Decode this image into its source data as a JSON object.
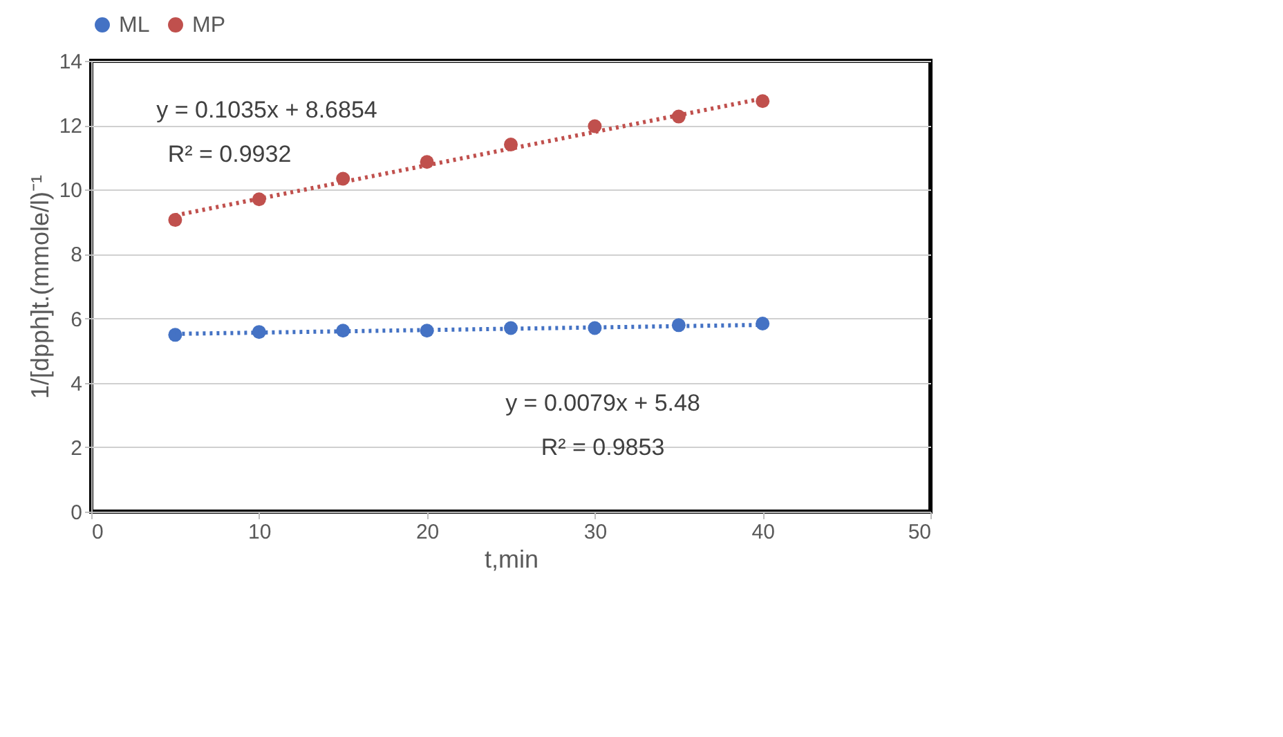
{
  "chart_data": {
    "type": "scatter",
    "xlabel": "t,min",
    "ylabel": "1/[dpph]t.(mmole/l)⁻¹",
    "xlim": [
      0,
      50
    ],
    "xticks": [
      0,
      10,
      20,
      30,
      40,
      50
    ],
    "ylim": [
      0,
      14
    ],
    "yticks": [
      0,
      2,
      4,
      6,
      8,
      10,
      12,
      14
    ],
    "grid": "y",
    "legend": "top",
    "series": [
      {
        "name": "ML",
        "color": "#4472c4",
        "marker": "circle",
        "x": [
          5,
          10,
          15,
          20,
          25,
          30,
          35,
          40
        ],
        "values": [
          5.49,
          5.58,
          5.62,
          5.62,
          5.7,
          5.7,
          5.79,
          5.84
        ]
      },
      {
        "name": "MP",
        "color": "#c0504d",
        "marker": "circle",
        "x": [
          5,
          10,
          15,
          20,
          25,
          30,
          35,
          40
        ],
        "values": [
          9.06,
          9.7,
          10.34,
          10.86,
          11.4,
          11.97,
          12.27,
          12.75
        ]
      },
      {
        "type": "line",
        "line_style": "dotted",
        "color": "#4472c4",
        "x": [
          5,
          40
        ],
        "values": [
          5.52,
          5.8
        ]
      },
      {
        "type": "line",
        "line_style": "dotted",
        "color": "#c0504d",
        "x": [
          5,
          40
        ],
        "values": [
          9.2,
          12.83
        ]
      }
    ],
    "annotations": [
      "y = 0.1035x + 8.6854",
      "R² = 0.9932",
      "y = 0.0079x + 5.48",
      "R² = 0.9853"
    ]
  }
}
